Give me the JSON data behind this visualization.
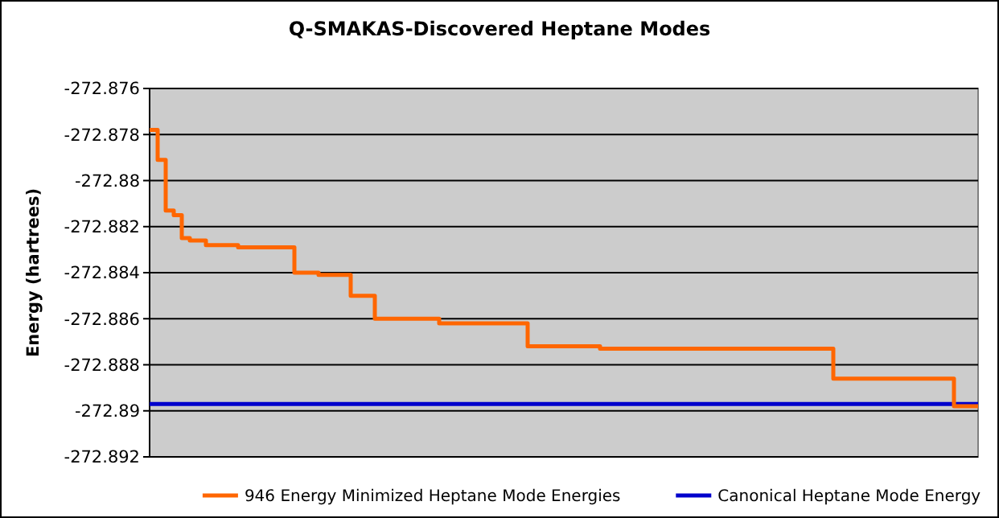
{
  "chart_data": {
    "type": "step",
    "title": "Q-SMAKAS-Discovered Heptane Modes",
    "ylabel": "Energy (hartrees)",
    "categories": [
      null,
      null,
      null,
      null,
      null,
      null,
      null,
      null,
      null,
      null,
      null,
      null,
      null,
      null,
      null,
      null,
      null,
      null,
      null,
      null,
      null,
      null,
      null,
      null,
      null,
      null,
      null,
      null,
      null,
      null,
      null,
      null,
      null,
      null,
      null,
      null,
      null,
      null,
      null,
      null,
      null,
      null,
      null,
      null,
      null,
      null,
      null,
      null,
      null,
      null,
      null,
      null,
      null,
      null,
      null,
      null,
      null,
      null,
      null,
      null,
      null,
      null,
      null,
      null,
      null,
      null,
      null,
      null,
      null,
      null,
      null,
      null,
      null,
      null,
      null,
      null,
      null,
      null,
      null,
      null,
      null,
      null,
      null,
      null,
      null,
      null,
      null,
      null,
      null,
      null,
      null,
      null,
      null,
      null,
      null,
      null,
      null,
      null,
      null,
      null,
      null,
      null,
      null,
      null
    ],
    "ylim": [
      -272.892,
      -272.876
    ],
    "yticks": [
      -272.876,
      -272.878,
      -272.88,
      -272.882,
      -272.884,
      -272.886,
      -272.888,
      -272.89,
      -272.892
    ],
    "grid": "y",
    "legend": "bottom",
    "marker": "none",
    "line_style": "solid",
    "series": [
      {
        "name": "946 Energy Minimized Heptane Mode Energies",
        "color": "#ff6600",
        "values": [
          -272.8778,
          -272.8791,
          -272.8813,
          -272.8815,
          -272.8825,
          -272.8826,
          -272.8826,
          -272.8828,
          -272.8828,
          -272.8828,
          -272.8828,
          -272.8829,
          -272.8829,
          -272.8829,
          -272.8829,
          -272.8829,
          -272.8829,
          -272.8829,
          -272.884,
          -272.884,
          -272.884,
          -272.8841,
          -272.8841,
          -272.8841,
          -272.8841,
          -272.885,
          -272.885,
          -272.885,
          -272.886,
          -272.886,
          -272.886,
          -272.886,
          -272.886,
          -272.886,
          -272.886,
          -272.886,
          -272.8862,
          -272.8862,
          -272.8862,
          -272.8862,
          -272.8862,
          -272.8862,
          -272.8862,
          -272.8862,
          -272.8862,
          -272.8862,
          -272.8862,
          -272.8872,
          -272.8872,
          -272.8872,
          -272.8872,
          -272.8872,
          -272.8872,
          -272.8872,
          -272.8872,
          -272.8872,
          -272.8873,
          -272.8873,
          -272.8873,
          -272.8873,
          -272.8873,
          -272.8873,
          -272.8873,
          -272.8873,
          -272.8873,
          -272.8873,
          -272.8873,
          -272.8873,
          -272.8873,
          -272.8873,
          -272.8873,
          -272.8873,
          -272.8873,
          -272.8873,
          -272.8873,
          -272.8873,
          -272.8873,
          -272.8873,
          -272.8873,
          -272.8873,
          -272.8873,
          -272.8873,
          -272.8873,
          -272.8873,
          -272.8873,
          -272.8886,
          -272.8886,
          -272.8886,
          -272.8886,
          -272.8886,
          -272.8886,
          -272.8886,
          -272.8886,
          -272.8886,
          -272.8886,
          -272.8886,
          -272.8886,
          -272.8886,
          -272.8886,
          -272.8886,
          -272.8898,
          -272.8898,
          -272.8898,
          -272.8898
        ]
      },
      {
        "name": "Canonical Heptane Mode Energy",
        "color": "#0000cc",
        "type": "line",
        "values": [
          -272.8897,
          -272.8897,
          -272.8897,
          -272.8897,
          -272.8897,
          -272.8897,
          -272.8897,
          -272.8897,
          -272.8897,
          -272.8897,
          -272.8897,
          -272.8897,
          -272.8897,
          -272.8897,
          -272.8897,
          -272.8897,
          -272.8897,
          -272.8897,
          -272.8897,
          -272.8897,
          -272.8897,
          -272.8897,
          -272.8897,
          -272.8897,
          -272.8897,
          -272.8897,
          -272.8897,
          -272.8897,
          -272.8897,
          -272.8897,
          -272.8897,
          -272.8897,
          -272.8897,
          -272.8897,
          -272.8897,
          -272.8897,
          -272.8897,
          -272.8897,
          -272.8897,
          -272.8897,
          -272.8897,
          -272.8897,
          -272.8897,
          -272.8897,
          -272.8897,
          -272.8897,
          -272.8897,
          -272.8897,
          -272.8897,
          -272.8897,
          -272.8897,
          -272.8897,
          -272.8897,
          -272.8897,
          -272.8897,
          -272.8897,
          -272.8897,
          -272.8897,
          -272.8897,
          -272.8897,
          -272.8897,
          -272.8897,
          -272.8897,
          -272.8897,
          -272.8897,
          -272.8897,
          -272.8897,
          -272.8897,
          -272.8897,
          -272.8897,
          -272.8897,
          -272.8897,
          -272.8897,
          -272.8897,
          -272.8897,
          -272.8897,
          -272.8897,
          -272.8897,
          -272.8897,
          -272.8897,
          -272.8897,
          -272.8897,
          -272.8897,
          -272.8897,
          -272.8897,
          -272.8897,
          -272.8897,
          -272.8897,
          -272.8897,
          -272.8897,
          -272.8897,
          -272.8897,
          -272.8897,
          -272.8897,
          -272.8897,
          -272.8897,
          -272.8897,
          -272.8897,
          -272.8897,
          -272.8897,
          -272.8897,
          -272.8897,
          -272.8897,
          -272.8897
        ]
      }
    ]
  }
}
